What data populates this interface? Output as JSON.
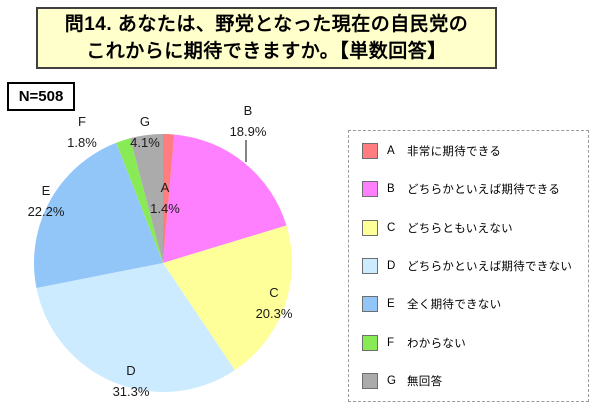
{
  "title": {
    "line1": "問14. あなたは、野党となった現在の自民党の",
    "line2": "これからに期待できますか。【単数回答】"
  },
  "sample": {
    "n_label": "N=508",
    "n": 508
  },
  "chart_data": {
    "type": "pie",
    "title": "問14. あなたは、野党となった現在の自民党のこれからに期待できますか。【単数回答】",
    "n_label": "N=508",
    "start_angle_deg": 0,
    "direction": "clockwise",
    "legend_position": "right",
    "categories": [
      "A",
      "B",
      "C",
      "D",
      "E",
      "F",
      "G"
    ],
    "series": [
      {
        "key": "A",
        "label": "非常に期待できる",
        "value": 1.4,
        "pct_label": "1.4%",
        "color": "#FF7C80"
      },
      {
        "key": "B",
        "label": "どちらかといえば期待できる",
        "value": 18.9,
        "pct_label": "18.9%",
        "color": "#FF80FF"
      },
      {
        "key": "C",
        "label": "どちらともいえない",
        "value": 20.3,
        "pct_label": "20.3%",
        "color": "#FFFF99"
      },
      {
        "key": "D",
        "label": "どちらかといえば期待できない",
        "value": 31.3,
        "pct_label": "31.3%",
        "color": "#CCEBFF"
      },
      {
        "key": "E",
        "label": "全く期待できない",
        "value": 22.2,
        "pct_label": "22.2%",
        "color": "#92C6F9"
      },
      {
        "key": "F",
        "label": "わからない",
        "value": 1.8,
        "pct_label": "1.8%",
        "color": "#88EB55"
      },
      {
        "key": "G",
        "label": "無回答",
        "value": 4.1,
        "pct_label": "4.1%",
        "color": "#ABABAB"
      }
    ]
  }
}
